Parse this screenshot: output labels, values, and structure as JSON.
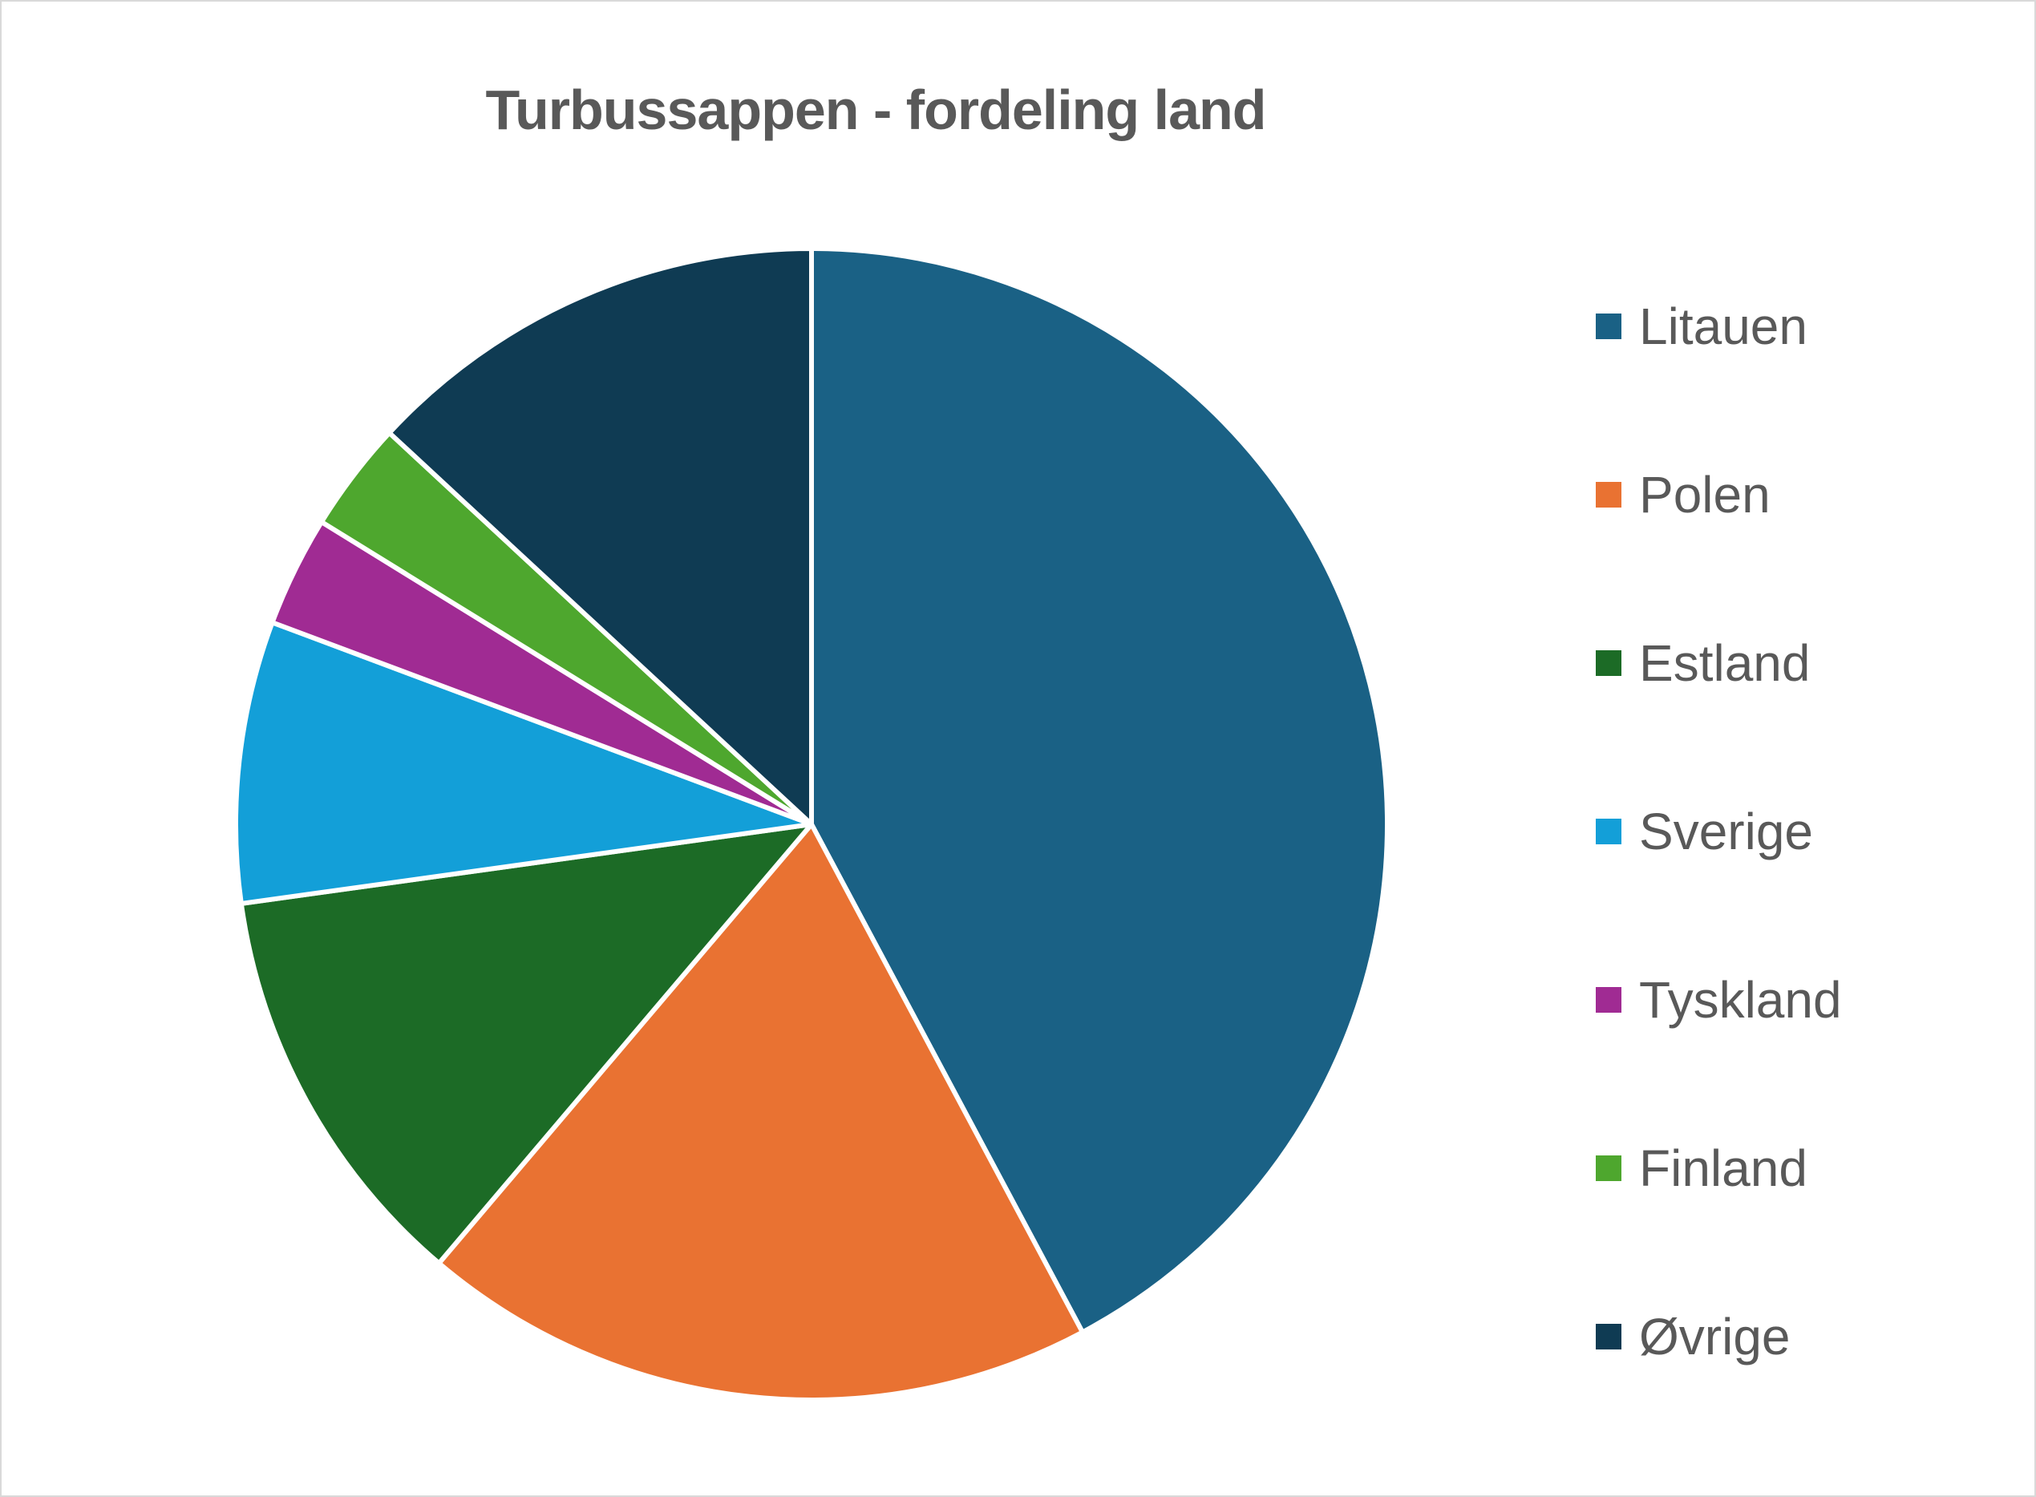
{
  "chart_data": {
    "type": "pie",
    "title": "Turbussappen - fordeling land",
    "legend_position": "right",
    "slices": [
      {
        "label": "Litauen",
        "value": 42.2,
        "color": "#1a6185"
      },
      {
        "label": "Polen",
        "value": 19.0,
        "color": "#e97232"
      },
      {
        "label": "Estland",
        "value": 11.6,
        "color": "#1c6b26"
      },
      {
        "label": "Sverige",
        "value": 7.9,
        "color": "#139fd8"
      },
      {
        "label": "Tyskland",
        "value": 3.1,
        "color": "#a02b93"
      },
      {
        "label": "Finland",
        "value": 3.1,
        "color": "#4ea72e"
      },
      {
        "label": "Øvrige",
        "value": 13.1,
        "color": "#0f3b53"
      }
    ]
  }
}
